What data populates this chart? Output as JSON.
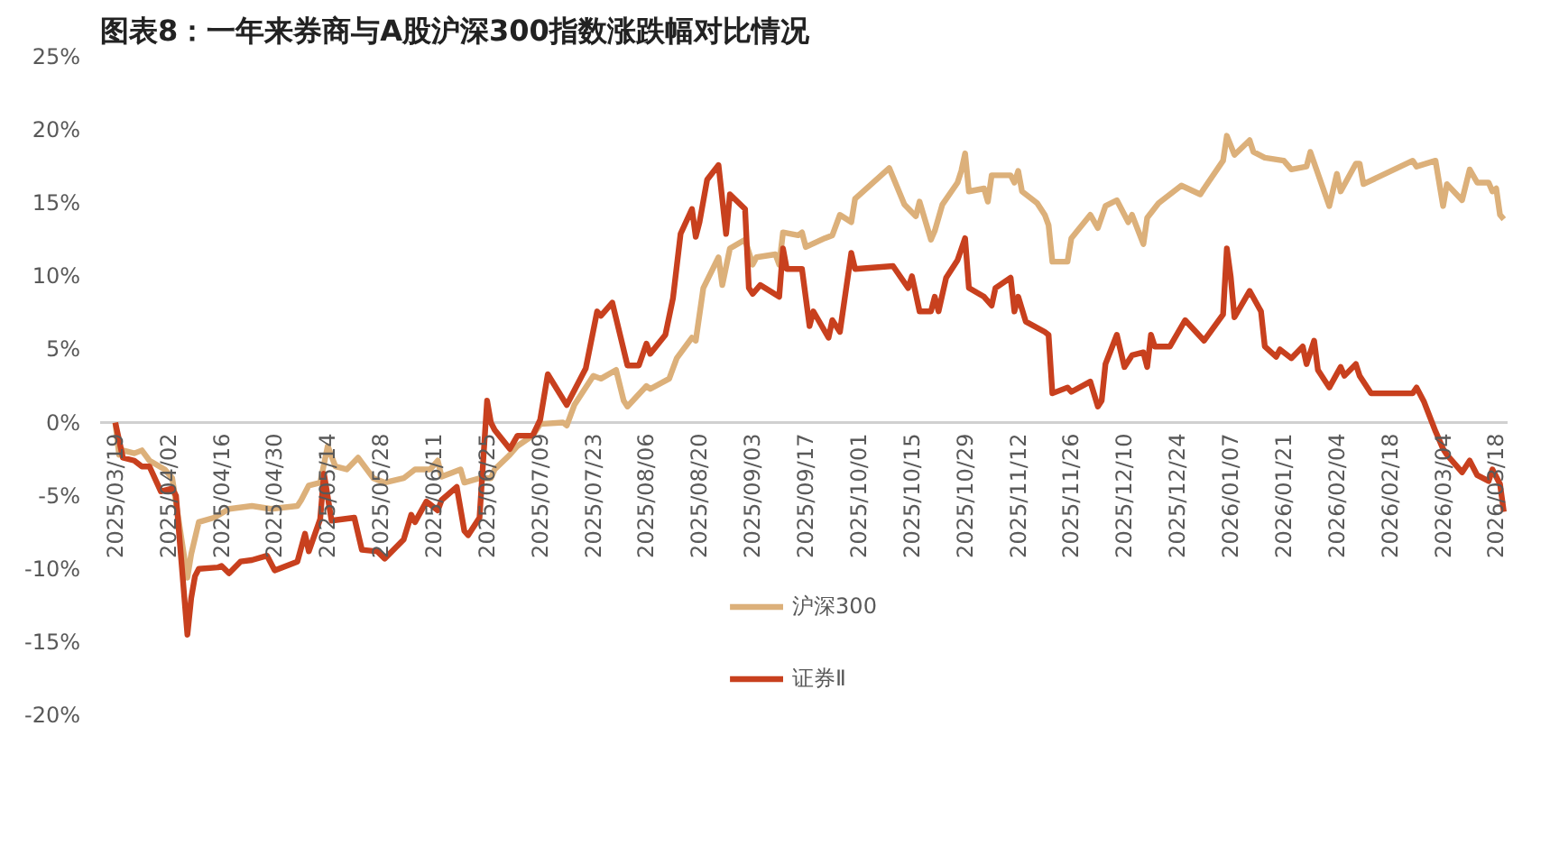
{
  "chart_data": {
    "type": "line",
    "title": "图表8：一年来券商与A股沪深300指数涨跌幅对比情况",
    "series": [
      {
        "name": "沪深300",
        "color": "#dcb07a",
        "x": [
          "2025-03-19",
          "2025-03-20",
          "2025-03-21",
          "2025-03-24",
          "2025-03-26",
          "2025-03-28",
          "2025-04-01",
          "2025-04-03",
          "2025-04-07",
          "2025-04-08",
          "2025-04-10",
          "2025-04-14",
          "2025-04-18",
          "2025-04-24",
          "2025-04-29",
          "2025-05-06",
          "2025-05-07",
          "2025-05-09",
          "2025-05-12",
          "2025-05-14",
          "2025-05-16",
          "2025-05-19",
          "2025-05-22",
          "2025-05-26",
          "2025-05-29",
          "2025-06-03",
          "2025-06-06",
          "2025-06-10",
          "2025-06-12",
          "2025-06-13",
          "2025-06-16",
          "2025-06-18",
          "2025-06-19",
          "2025-06-23",
          "2025-06-26",
          "2025-06-27",
          "2025-07-01",
          "2025-07-03",
          "2025-07-07",
          "2025-07-09",
          "2025-07-15",
          "2025-07-16",
          "2025-07-18",
          "2025-07-23",
          "2025-07-25",
          "2025-07-29",
          "2025-07-31",
          "2025-08-01",
          "2025-08-06",
          "2025-08-07",
          "2025-08-12",
          "2025-08-14",
          "2025-08-18",
          "2025-08-19",
          "2025-08-21",
          "2025-08-25",
          "2025-08-26",
          "2025-08-28",
          "2025-09-01",
          "2025-09-03",
          "2025-09-04",
          "2025-09-09",
          "2025-09-10",
          "2025-09-11",
          "2025-09-15",
          "2025-09-16",
          "2025-09-17",
          "2025-09-22",
          "2025-09-24",
          "2025-09-26",
          "2025-09-29",
          "2025-09-30",
          "2025-10-09",
          "2025-10-13",
          "2025-10-16",
          "2025-10-17",
          "2025-10-20",
          "2025-10-21",
          "2025-10-23",
          "2025-10-27",
          "2025-10-28",
          "2025-10-29",
          "2025-10-30",
          "2025-11-03",
          "2025-11-04",
          "2025-11-05",
          "2025-11-10",
          "2025-11-11",
          "2025-11-12",
          "2025-11-13",
          "2025-11-17",
          "2025-11-19",
          "2025-11-20",
          "2025-11-21",
          "2025-11-25",
          "2025-11-26",
          "2025-12-01",
          "2025-12-03",
          "2025-12-05",
          "2025-12-08",
          "2025-12-11",
          "2025-12-12",
          "2025-12-15",
          "2025-12-16",
          "2025-12-19",
          "2025-12-25",
          "2025-12-30",
          "2025-12-31",
          "2026-01-05",
          "2026-01-06",
          "2026-01-08",
          "2026-01-12",
          "2026-01-13",
          "2026-01-16",
          "2026-01-21",
          "2026-01-23",
          "2026-01-27",
          "2026-01-28",
          "2026-02-02",
          "2026-02-04",
          "2026-02-05",
          "2026-02-09",
          "2026-02-10",
          "2026-02-11",
          "2026-02-24",
          "2026-02-25",
          "2026-03-02",
          "2026-03-04",
          "2026-03-05",
          "2026-03-09",
          "2026-03-11",
          "2026-03-13",
          "2026-03-16",
          "2026-03-17",
          "2026-03-18",
          "2026-03-19",
          "2026-03-20"
        ],
        "values": [
          0,
          -2.2,
          -1.9,
          -2.1,
          -1.9,
          -2.6,
          -3.2,
          -3.8,
          -10.6,
          -9.0,
          -6.8,
          -6.5,
          -5.9,
          -5.7,
          -5.9,
          -5.7,
          -5.3,
          -4.3,
          -4.1,
          -1.6,
          -3.0,
          -3.2,
          -2.4,
          -3.8,
          -4.1,
          -3.8,
          -3.2,
          -3.2,
          -2.6,
          -3.7,
          -3.4,
          -3.2,
          -4.1,
          -3.8,
          -3.8,
          -3.2,
          -2.2,
          -1.6,
          -0.9,
          -0.1,
          0.0,
          -0.2,
          1.2,
          3.2,
          3.0,
          3.6,
          1.5,
          1.1,
          2.5,
          2.3,
          3.0,
          4.4,
          5.8,
          5.6,
          9.2,
          11.3,
          9.4,
          11.9,
          12.5,
          10.8,
          11.3,
          11.5,
          10.8,
          13.0,
          12.8,
          13.0,
          12.0,
          12.6,
          12.8,
          14.2,
          13.7,
          15.3,
          17.4,
          14.9,
          14.1,
          15.1,
          12.5,
          13.1,
          14.9,
          16.4,
          17.2,
          18.4,
          15.8,
          16.0,
          15.1,
          16.9,
          16.9,
          16.4,
          17.2,
          15.8,
          15.0,
          14.2,
          13.5,
          11.0,
          11.0,
          12.6,
          14.2,
          13.3,
          14.8,
          15.2,
          13.7,
          14.2,
          12.2,
          14.0,
          15.0,
          16.2,
          15.6,
          16.0,
          17.9,
          19.6,
          18.3,
          19.3,
          18.5,
          18.1,
          17.9,
          17.3,
          17.5,
          18.5,
          14.8,
          17.0,
          15.8,
          17.7,
          17.7,
          16.3,
          17.9,
          17.5,
          17.9,
          14.8,
          16.3,
          15.2,
          17.3,
          16.4,
          16.4,
          15.8,
          16.0,
          14.2,
          13.9
        ]
      },
      {
        "name": "证券Ⅱ",
        "color": "#c8401e",
        "x": [
          "2025-03-19",
          "2025-03-21",
          "2025-03-24",
          "2025-03-26",
          "2025-03-28",
          "2025-03-31",
          "2025-04-03",
          "2025-04-04",
          "2025-04-07",
          "2025-04-08",
          "2025-04-09",
          "2025-04-10",
          "2025-04-15",
          "2025-04-16",
          "2025-04-18",
          "2025-04-21",
          "2025-04-24",
          "2025-04-28",
          "2025-04-30",
          "2025-05-06",
          "2025-05-08",
          "2025-05-09",
          "2025-05-12",
          "2025-05-13",
          "2025-05-15",
          "2025-05-21",
          "2025-05-23",
          "2025-05-27",
          "2025-05-29",
          "2025-06-03",
          "2025-06-05",
          "2025-06-06",
          "2025-06-09",
          "2025-06-12",
          "2025-06-13",
          "2025-06-17",
          "2025-06-19",
          "2025-06-20",
          "2025-06-23",
          "2025-06-25",
          "2025-06-26",
          "2025-06-27",
          "2025-07-01",
          "2025-07-03",
          "2025-07-07",
          "2025-07-09",
          "2025-07-11",
          "2025-07-16",
          "2025-07-21",
          "2025-07-24",
          "2025-07-25",
          "2025-07-28",
          "2025-08-01",
          "2025-08-04",
          "2025-08-06",
          "2025-08-07",
          "2025-08-11",
          "2025-08-13",
          "2025-08-15",
          "2025-08-18",
          "2025-08-19",
          "2025-08-20",
          "2025-08-22",
          "2025-08-25",
          "2025-08-27",
          "2025-08-28",
          "2025-09-01",
          "2025-09-02",
          "2025-09-03",
          "2025-09-05",
          "2025-09-10",
          "2025-09-11",
          "2025-09-12",
          "2025-09-16",
          "2025-09-18",
          "2025-09-19",
          "2025-09-23",
          "2025-09-24",
          "2025-09-26",
          "2025-09-29",
          "2025-09-30",
          "2025-10-10",
          "2025-10-14",
          "2025-10-15",
          "2025-10-17",
          "2025-10-20",
          "2025-10-21",
          "2025-10-22",
          "2025-10-24",
          "2025-10-27",
          "2025-10-29",
          "2025-10-30",
          "2025-11-03",
          "2025-11-05",
          "2025-11-06",
          "2025-11-10",
          "2025-11-11",
          "2025-11-12",
          "2025-11-14",
          "2025-11-19",
          "2025-11-20",
          "2025-11-21",
          "2025-11-25",
          "2025-11-26",
          "2025-12-01",
          "2025-12-03",
          "2025-12-04",
          "2025-12-05",
          "2025-12-08",
          "2025-12-10",
          "2025-12-12",
          "2025-12-15",
          "2025-12-16",
          "2025-12-17",
          "2025-12-18",
          "2025-12-22",
          "2025-12-26",
          "2025-12-31",
          "2026-01-05",
          "2026-01-06",
          "2026-01-07",
          "2026-01-08",
          "2026-01-12",
          "2026-01-15",
          "2026-01-16",
          "2026-01-19",
          "2026-01-20",
          "2026-01-23",
          "2026-01-26",
          "2026-01-27",
          "2026-01-29",
          "2026-01-30",
          "2026-02-02",
          "2026-02-05",
          "2026-02-06",
          "2026-02-09",
          "2026-02-10",
          "2026-02-13",
          "2026-02-24",
          "2026-02-25",
          "2026-02-27",
          "2026-03-02",
          "2026-03-04",
          "2026-03-05",
          "2026-03-09",
          "2026-03-11",
          "2026-03-13",
          "2026-03-16",
          "2026-03-17",
          "2026-03-19",
          "2026-03-20"
        ],
        "values": [
          0,
          -2.4,
          -2.6,
          -3.0,
          -3.0,
          -4.7,
          -4.5,
          -5.0,
          -14.5,
          -12.0,
          -10.5,
          -10.0,
          -9.9,
          -9.8,
          -10.3,
          -9.5,
          -9.4,
          -9.1,
          -10.1,
          -9.5,
          -7.6,
          -8.8,
          -6.6,
          -3.5,
          -6.7,
          -6.5,
          -8.7,
          -8.8,
          -9.3,
          -8.0,
          -6.3,
          -6.8,
          -5.4,
          -6.0,
          -5.3,
          -4.4,
          -7.4,
          -7.7,
          -6.5,
          1.5,
          0.0,
          -0.5,
          -1.8,
          -0.9,
          -0.9,
          0.2,
          3.3,
          1.2,
          3.7,
          7.6,
          7.3,
          8.2,
          3.9,
          3.9,
          5.4,
          4.7,
          6.0,
          8.5,
          12.9,
          14.6,
          12.7,
          13.7,
          16.6,
          17.6,
          12.9,
          15.6,
          14.6,
          9.2,
          8.8,
          9.4,
          8.6,
          11.9,
          10.5,
          10.5,
          6.6,
          7.6,
          5.8,
          7.0,
          6.2,
          11.6,
          10.5,
          10.7,
          9.2,
          10.0,
          7.6,
          7.6,
          8.6,
          7.6,
          9.9,
          11.1,
          12.6,
          9.2,
          8.6,
          8.0,
          9.2,
          9.9,
          7.6,
          8.6,
          6.9,
          6.2,
          6.0,
          2.0,
          2.4,
          2.1,
          2.8,
          1.1,
          1.5,
          4.0,
          6.0,
          3.8,
          4.6,
          4.8,
          3.8,
          6.0,
          5.2,
          5.2,
          7.0,
          5.6,
          7.4,
          11.9,
          10.0,
          7.2,
          9.0,
          7.6,
          5.2,
          4.5,
          5.0,
          4.4,
          5.2,
          4.0,
          5.6,
          3.6,
          2.4,
          3.8,
          3.2,
          4.0,
          3.2,
          2.0,
          2.0,
          2.4,
          1.4,
          -0.6,
          -1.8,
          -2.2,
          -3.4,
          -2.6,
          -3.6,
          -4.0,
          -3.2,
          -4.2,
          -6.1
        ]
      }
    ],
    "xlim": [
      "2025-03-15",
      "2026-03-21"
    ],
    "xticks": [
      {
        "value": "2025-03-19",
        "label": "2025/03/19"
      },
      {
        "value": "2025-04-02",
        "label": "2025/04/02"
      },
      {
        "value": "2025-04-16",
        "label": "2025/04/16"
      },
      {
        "value": "2025-04-30",
        "label": "2025/04/30"
      },
      {
        "value": "2025-05-14",
        "label": "2025/05/14"
      },
      {
        "value": "2025-05-28",
        "label": "2025/05/28"
      },
      {
        "value": "2025-06-11",
        "label": "2025/06/11"
      },
      {
        "value": "2025-06-25",
        "label": "2025/06/25"
      },
      {
        "value": "2025-07-09",
        "label": "2025/07/09"
      },
      {
        "value": "2025-07-23",
        "label": "2025/07/23"
      },
      {
        "value": "2025-08-06",
        "label": "2025/08/06"
      },
      {
        "value": "2025-08-20",
        "label": "2025/08/20"
      },
      {
        "value": "2025-09-03",
        "label": "2025/09/03"
      },
      {
        "value": "2025-09-17",
        "label": "2025/09/17"
      },
      {
        "value": "2025-10-01",
        "label": "2025/10/01"
      },
      {
        "value": "2025-10-15",
        "label": "2025/10/15"
      },
      {
        "value": "2025-10-29",
        "label": "2025/10/29"
      },
      {
        "value": "2025-11-12",
        "label": "2025/11/12"
      },
      {
        "value": "2025-11-26",
        "label": "2025/11/26"
      },
      {
        "value": "2025-12-10",
        "label": "2025/12/10"
      },
      {
        "value": "2025-12-24",
        "label": "2025/12/24"
      },
      {
        "value": "2026-01-07",
        "label": "2026/01/07"
      },
      {
        "value": "2026-01-21",
        "label": "2026/01/21"
      },
      {
        "value": "2026-02-04",
        "label": "2026/02/04"
      },
      {
        "value": "2026-02-18",
        "label": "2026/02/18"
      },
      {
        "value": "2026-03-04",
        "label": "2026/03/04"
      },
      {
        "value": "2026-03-18",
        "label": "2026/03/18"
      }
    ],
    "ylim": [
      -20,
      25
    ],
    "yticks": [
      {
        "value": -20,
        "label": "-20%"
      },
      {
        "value": -15,
        "label": "-15%"
      },
      {
        "value": -10,
        "label": "-10%"
      },
      {
        "value": -5,
        "label": "-5%"
      },
      {
        "value": 0,
        "label": "0%"
      },
      {
        "value": 5,
        "label": "5%"
      },
      {
        "value": 10,
        "label": "10%"
      },
      {
        "value": 15,
        "label": "15%"
      },
      {
        "value": 20,
        "label": "20%"
      },
      {
        "value": 25,
        "label": "25%"
      }
    ],
    "legend": "bottom"
  }
}
